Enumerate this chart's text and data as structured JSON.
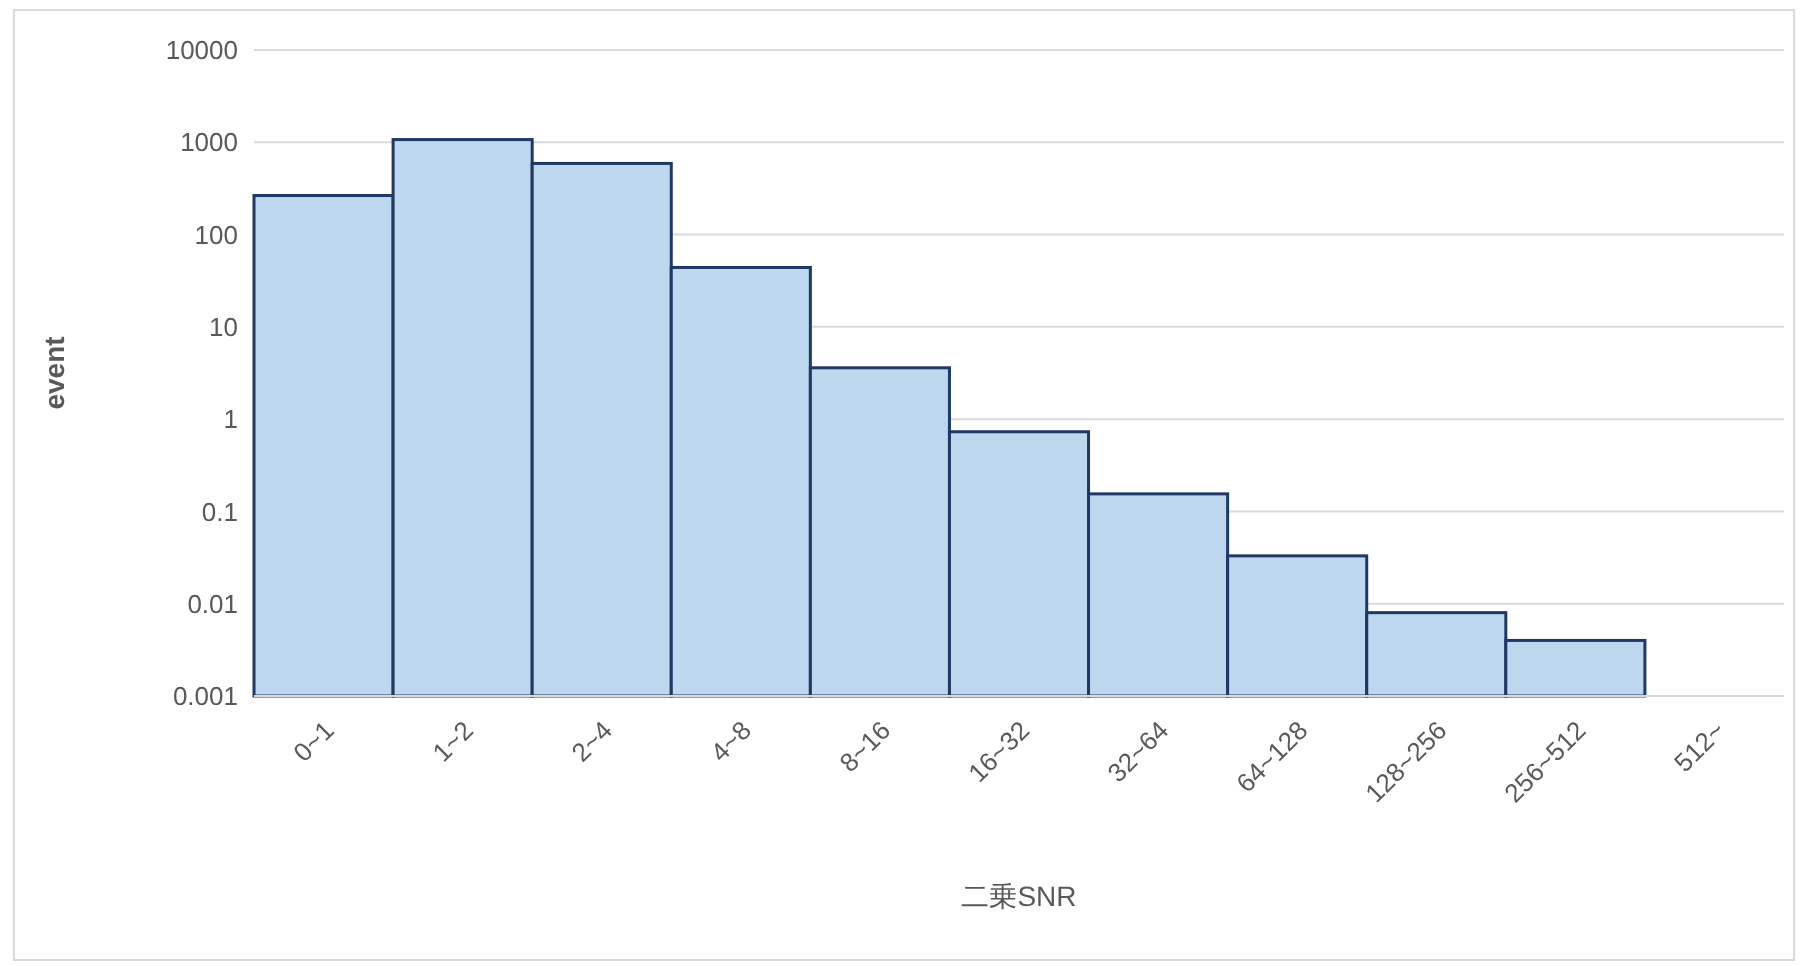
{
  "chart_data": {
    "type": "bar",
    "xlabel": "二乗SNR",
    "ylabel": "event",
    "categories": [
      "0~1",
      "1~2",
      "2~4",
      "4~8",
      "8~16",
      "16~32",
      "32~64",
      "64~128",
      "128~256",
      "256~512",
      "512~"
    ],
    "values": [
      265,
      1070,
      590,
      44,
      3.6,
      0.73,
      0.155,
      0.033,
      0.008,
      0.004,
      null
    ],
    "color": "#bdd7ee",
    "log": true,
    "ylim": [
      0.001,
      10000
    ],
    "yticks": [
      0.001,
      0.01,
      0.1,
      1,
      10,
      100,
      1000,
      10000
    ],
    "grid": "y"
  }
}
